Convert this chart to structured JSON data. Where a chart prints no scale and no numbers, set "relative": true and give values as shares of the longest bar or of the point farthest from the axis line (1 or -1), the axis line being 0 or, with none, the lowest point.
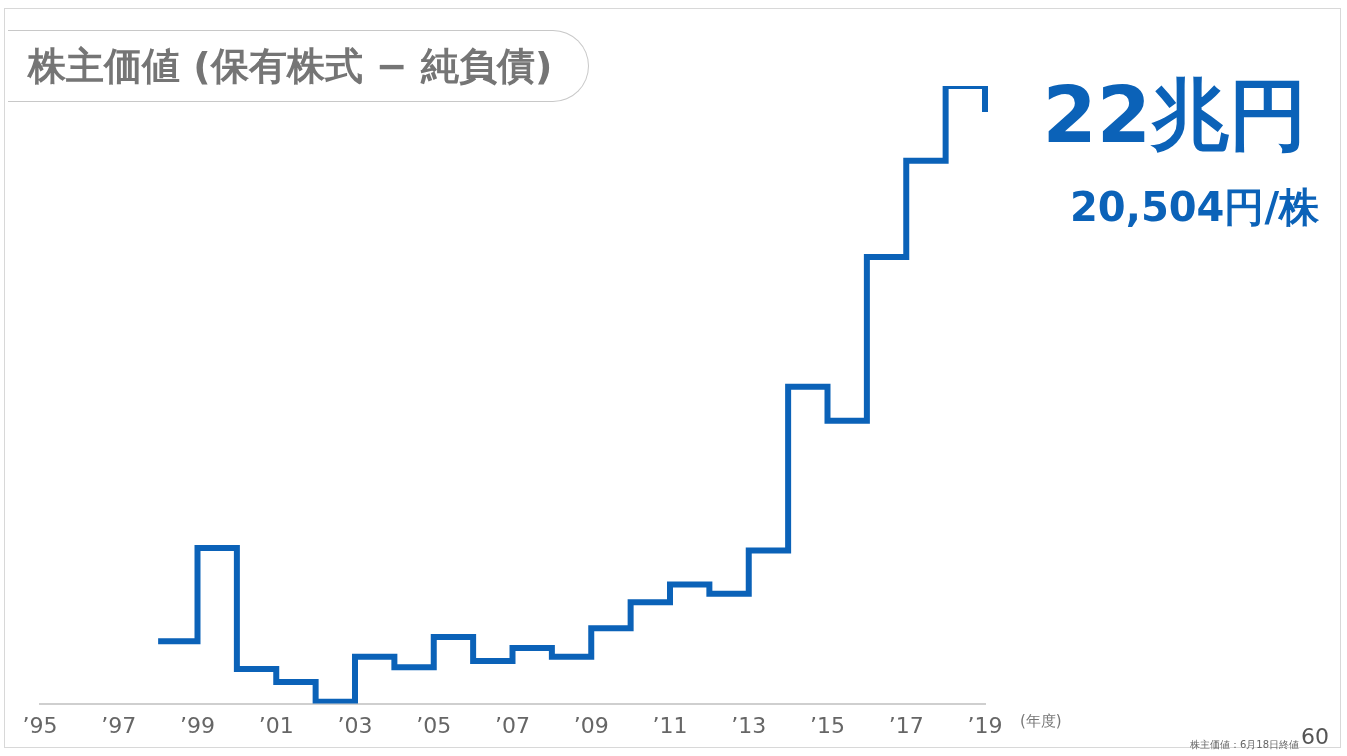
{
  "chart_data": {
    "type": "step",
    "title": "株主価値 (保有株式 − 純負債)",
    "xlabel": "(年度)",
    "relative": true,
    "categories": [
      "’95",
      null,
      "’97",
      null,
      "’99",
      null,
      "’01",
      null,
      "’03",
      null,
      "’05",
      null,
      "’07",
      null,
      "’09",
      null,
      "’11",
      null,
      "’13",
      null,
      "’15",
      null,
      "’17",
      null,
      "’19"
    ],
    "series": [
      {
        "color": "#0b62b8",
        "values": [
          null,
          null,
          null,
          0.101,
          0.252,
          0.056,
          0.035,
          0.003,
          0.076,
          0.059,
          0.108,
          0.069,
          0.09,
          0.076,
          0.122,
          0.164,
          0.193,
          0.178,
          0.248,
          0.513,
          0.458,
          0.723,
          0.879,
          1,
          0.958
        ]
      }
    ],
    "annotations": [
      "22兆円",
      "20,504円/株",
      "株主価値：6月18日終値",
      "60"
    ],
    "grid": false,
    "legend": false
  }
}
